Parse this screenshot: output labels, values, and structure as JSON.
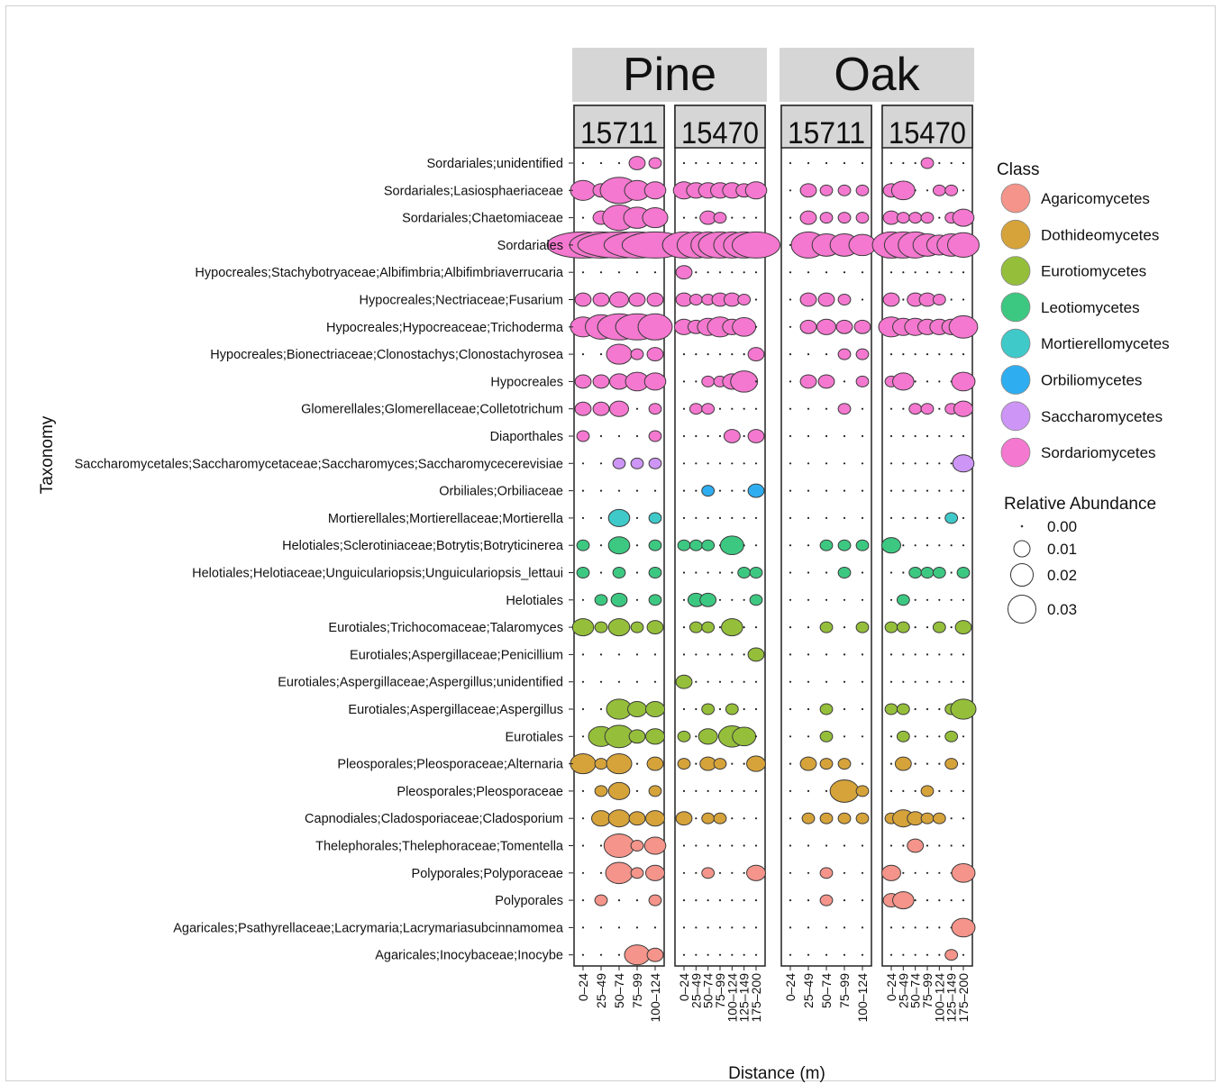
{
  "chart_data": {
    "type": "scatter",
    "xlabel": "Distance (m)",
    "ylabel": "Taxonomy",
    "facets": [
      {
        "site": "Pine",
        "plots": [
          {
            "id": "15711",
            "distance_bins": [
              "0–24",
              "25–49",
              "50–74",
              "75–99",
              "100–124"
            ]
          },
          {
            "id": "15470",
            "distance_bins": [
              "0–24",
              "25–49",
              "50–74",
              "75–99",
              "100–124",
              "125–149",
              "175–200"
            ]
          }
        ]
      },
      {
        "site": "Oak",
        "plots": [
          {
            "id": "15711",
            "distance_bins": [
              "0–24",
              "25–49",
              "50–74",
              "75–99",
              "100–124"
            ]
          },
          {
            "id": "15470",
            "distance_bins": [
              "0–24",
              "25–49",
              "50–74",
              "75–99",
              "100–124",
              "125–149",
              "175–200"
            ]
          }
        ]
      }
    ],
    "taxa": [
      "Sordariales;unidentified",
      "Sordariales;Lasiosphaeriaceae",
      "Sordariales;Chaetomiaceae",
      "Sordariales",
      "Hypocreales;Stachybotryaceae;Albifimbria;Albifimbriaverrucaria",
      "Hypocreales;Nectriaceae;Fusarium",
      "Hypocreales;Hypocreaceae;Trichoderma",
      "Hypocreales;Bionectriaceae;Clonostachys;Clonostachyrosea",
      "Hypocreales",
      "Glomerellales;Glomerellaceae;Colletotrichum",
      "Diaporthales",
      "Saccharomycetales;Saccharomycetaceae;Saccharomyces;Saccharomycecerevisiae",
      "Orbiliales;Orbiliaceae",
      "Mortierellales;Mortierellaceae;Mortierella",
      "Helotiales;Sclerotiniaceae;Botrytis;Botryticinerea",
      "Helotiales;Helotiaceae;Unguiculariopsis;Unguiculariopsis_lettaui",
      "Helotiales",
      "Eurotiales;Trichocomaceae;Talaromyces",
      "Eurotiales;Aspergillaceae;Penicillium",
      "Eurotiales;Aspergillaceae;Aspergillus;unidentified",
      "Eurotiales;Aspergillaceae;Aspergillus",
      "Eurotiales",
      "Pleosporales;Pleosporaceae;Alternaria",
      "Pleosporales;Pleosporaceae",
      "Capnodiales;Cladosporiaceae;Cladosporium",
      "Thelephorales;Thelephoraceae;Tomentella",
      "Polyporales;Polyporaceae",
      "Polyporales",
      "Agaricales;Psathyrellaceae;Lacrymaria;Lacrymariasubcinnamomea",
      "Agaricales;Inocybaceae;Inocybe"
    ],
    "taxon_class": [
      "Sordariomycetes",
      "Sordariomycetes",
      "Sordariomycetes",
      "Sordariomycetes",
      "Sordariomycetes",
      "Sordariomycetes",
      "Sordariomycetes",
      "Sordariomycetes",
      "Sordariomycetes",
      "Sordariomycetes",
      "Sordariomycetes",
      "Saccharomycetes",
      "Orbiliomycetes",
      "Mortierellomycetes",
      "Leotiomycetes",
      "Leotiomycetes",
      "Leotiomycetes",
      "Eurotiomycetes",
      "Eurotiomycetes",
      "Eurotiomycetes",
      "Eurotiomycetes",
      "Eurotiomycetes",
      "Dothideomycetes",
      "Dothideomycetes",
      "Dothideomycetes",
      "Agaricomycetes",
      "Agaricomycetes",
      "Agaricomycetes",
      "Agaricomycetes",
      "Agaricomycetes"
    ],
    "abundance_note_values_are_relative_abundance": true,
    "values": [
      [
        [
          [
            0,
            0,
            0,
            0.002,
            0.001
          ],
          [
            0.006,
            0.002,
            0.015,
            0.006,
            0.004
          ],
          [
            0,
            0.002,
            0.011,
            0.007,
            0.006
          ],
          [
            0.06,
            0.045,
            0.08,
            0.05,
            0.05
          ],
          [
            0,
            0,
            0,
            0,
            0
          ],
          [
            0.002,
            0.002,
            0.003,
            0.002,
            0.002
          ],
          [
            0.006,
            0.01,
            0.02,
            0.02,
            0.012
          ],
          [
            0,
            0,
            0.006,
            0.001,
            0.002
          ],
          [
            0.002,
            0.002,
            0.003,
            0.005,
            0.004
          ],
          [
            0.002,
            0.002,
            0.003,
            0,
            0.001
          ],
          [
            0.001,
            0,
            0,
            0,
            0.001
          ],
          [
            0,
            0,
            0.001,
            0.001,
            0.001
          ],
          [
            0,
            0,
            0,
            0,
            0
          ],
          [
            0,
            0,
            0.004,
            0,
            0.001
          ],
          [
            0.001,
            0,
            0.004,
            0,
            0.001
          ],
          [
            0.001,
            0,
            0.001,
            0,
            0.001
          ],
          [
            0,
            0.001,
            0.002,
            0,
            0.001
          ],
          [
            0.004,
            0.001,
            0.004,
            0.001,
            0.002
          ],
          [
            0,
            0,
            0,
            0,
            0
          ],
          [
            0,
            0,
            0,
            0,
            0
          ],
          [
            0,
            0,
            0.006,
            0.003,
            0.003
          ],
          [
            0,
            0.006,
            0.008,
            0.002,
            0.003
          ],
          [
            0.006,
            0.001,
            0.006,
            0,
            0.002
          ],
          [
            0,
            0.001,
            0.004,
            0,
            0.001
          ],
          [
            0,
            0.003,
            0.004,
            0.002,
            0.003
          ],
          [
            0,
            0,
            0.009,
            0.001,
            0.004
          ],
          [
            0,
            0,
            0.007,
            0.001,
            0.003
          ],
          [
            0,
            0.001,
            0,
            0,
            0.001
          ],
          [
            0,
            0,
            0,
            0,
            0
          ],
          [
            0,
            0,
            0,
            0.006,
            0.002
          ]
        ],
        [
          [
            0,
            0,
            0,
            0,
            0,
            0,
            0
          ],
          [
            0.004,
            0.003,
            0.003,
            0.003,
            0.003,
            0.002,
            0.004
          ],
          [
            0,
            0,
            0.002,
            0.001,
            0,
            0,
            0
          ],
          [
            0.02,
            0.015,
            0.012,
            0.02,
            0.014,
            0.018,
            0.025
          ],
          [
            0.002,
            0,
            0,
            0,
            0,
            0,
            0
          ],
          [
            0.002,
            0.001,
            0.001,
            0.002,
            0.002,
            0.001,
            0
          ],
          [
            0.003,
            0.002,
            0.004,
            0.006,
            0.003,
            0.005,
            0
          ],
          [
            0,
            0,
            0,
            0,
            0,
            0,
            0.002
          ],
          [
            0,
            0,
            0.001,
            0.001,
            0.003,
            0.007,
            0
          ],
          [
            0,
            0.001,
            0.001,
            0,
            0,
            0,
            0
          ],
          [
            0,
            0,
            0,
            0,
            0.002,
            0,
            0.002
          ],
          [
            0,
            0,
            0,
            0,
            0,
            0,
            0
          ],
          [
            0,
            0,
            0.001,
            0,
            0,
            0,
            0.002
          ],
          [
            0,
            0,
            0,
            0,
            0,
            0,
            0
          ],
          [
            0.001,
            0.001,
            0.001,
            0,
            0.005,
            0,
            0
          ],
          [
            0,
            0,
            0,
            0,
            0,
            0.001,
            0.001
          ],
          [
            0,
            0.002,
            0.002,
            0,
            0,
            0,
            0.001
          ],
          [
            0,
            0.001,
            0.001,
            0,
            0.004,
            0,
            0
          ],
          [
            0,
            0,
            0,
            0,
            0,
            0,
            0.002
          ],
          [
            0.002,
            0,
            0,
            0,
            0,
            0,
            0
          ],
          [
            0,
            0,
            0.001,
            0,
            0.001,
            0,
            0
          ],
          [
            0.001,
            0,
            0.003,
            0,
            0.007,
            0.005,
            0
          ],
          [
            0.001,
            0,
            0.002,
            0.001,
            0,
            0,
            0.003
          ],
          [
            0,
            0,
            0,
            0,
            0,
            0,
            0
          ],
          [
            0.002,
            0,
            0.001,
            0.001,
            0,
            0,
            0
          ],
          [
            0,
            0,
            0,
            0,
            0,
            0,
            0
          ],
          [
            0,
            0,
            0.001,
            0,
            0,
            0,
            0.003
          ],
          [
            0,
            0,
            0,
            0,
            0,
            0,
            0
          ],
          [
            0,
            0,
            0,
            0,
            0,
            0,
            0
          ],
          [
            0,
            0,
            0,
            0,
            0,
            0,
            0
          ]
        ]
      ],
      [
        [
          [
            0,
            0,
            0,
            0,
            0
          ],
          [
            0,
            0.002,
            0.001,
            0.001,
            0.001
          ],
          [
            0,
            0.002,
            0.001,
            0.001,
            0.001
          ],
          [
            0,
            0.012,
            0.008,
            0.008,
            0.007
          ],
          [
            0,
            0,
            0,
            0,
            0
          ],
          [
            0,
            0.002,
            0.002,
            0.001,
            0
          ],
          [
            0,
            0.002,
            0.003,
            0.002,
            0.002
          ],
          [
            0,
            0,
            0,
            0.001,
            0.001
          ],
          [
            0,
            0.002,
            0.002,
            0,
            0.001
          ],
          [
            0,
            0,
            0,
            0.001,
            0
          ],
          [
            0,
            0,
            0,
            0,
            0
          ],
          [
            0,
            0,
            0,
            0,
            0
          ],
          [
            0,
            0,
            0,
            0,
            0
          ],
          [
            0,
            0,
            0,
            0,
            0
          ],
          [
            0,
            0,
            0.001,
            0.001,
            0.001
          ],
          [
            0,
            0,
            0,
            0.001,
            0
          ],
          [
            0,
            0,
            0,
            0,
            0
          ],
          [
            0,
            0,
            0.001,
            0,
            0.001
          ],
          [
            0,
            0,
            0,
            0,
            0
          ],
          [
            0,
            0,
            0,
            0,
            0
          ],
          [
            0,
            0,
            0.001,
            0,
            0
          ],
          [
            0,
            0,
            0.001,
            0,
            0
          ],
          [
            0,
            0.002,
            0.001,
            0.001,
            0
          ],
          [
            0,
            0,
            0,
            0.008,
            0.001
          ],
          [
            0,
            0.001,
            0.001,
            0.001,
            0.001
          ],
          [
            0,
            0,
            0,
            0,
            0
          ],
          [
            0,
            0,
            0.001,
            0,
            0
          ],
          [
            0,
            0,
            0.001,
            0,
            0
          ],
          [
            0,
            0,
            0,
            0,
            0
          ],
          [
            0,
            0,
            0,
            0,
            0
          ]
        ],
        [
          [
            0,
            0,
            0,
            0.001,
            0,
            0,
            0
          ],
          [
            0.002,
            0.005,
            0,
            0,
            0.001,
            0.001,
            0
          ],
          [
            0.002,
            0.001,
            0.001,
            0.001,
            0,
            0.001,
            0.004
          ],
          [
            0.015,
            0.015,
            0.012,
            0.008,
            0.006,
            0.008,
            0.01
          ],
          [
            0,
            0,
            0,
            0,
            0,
            0,
            0
          ],
          [
            0.002,
            0,
            0.002,
            0.002,
            0.001,
            0,
            0
          ],
          [
            0.006,
            0.004,
            0.004,
            0.003,
            0.003,
            0.003,
            0.008
          ],
          [
            0,
            0,
            0,
            0,
            0,
            0,
            0
          ],
          [
            0.001,
            0.004,
            0,
            0,
            0,
            0,
            0.005
          ],
          [
            0,
            0,
            0.001,
            0.001,
            0,
            0.001,
            0.003
          ],
          [
            0,
            0,
            0,
            0,
            0,
            0,
            0
          ],
          [
            0,
            0,
            0,
            0,
            0,
            0,
            0.004
          ],
          [
            0,
            0,
            0,
            0,
            0,
            0,
            0
          ],
          [
            0,
            0,
            0,
            0,
            0,
            0.001,
            0
          ],
          [
            0.003,
            0,
            0,
            0,
            0,
            0,
            0
          ],
          [
            0,
            0,
            0.001,
            0.001,
            0.001,
            0,
            0.001
          ],
          [
            0,
            0.001,
            0,
            0,
            0,
            0,
            0
          ],
          [
            0.001,
            0.001,
            0,
            0,
            0.001,
            0,
            0.002
          ],
          [
            0,
            0,
            0,
            0,
            0,
            0,
            0
          ],
          [
            0,
            0,
            0,
            0,
            0,
            0,
            0
          ],
          [
            0.001,
            0.001,
            0,
            0,
            0,
            0.001,
            0.006
          ],
          [
            0,
            0.001,
            0,
            0,
            0,
            0.001,
            0
          ],
          [
            0,
            0.002,
            0,
            0,
            0,
            0.001,
            0
          ],
          [
            0,
            0,
            0,
            0.001,
            0,
            0,
            0
          ],
          [
            0.001,
            0.004,
            0.002,
            0.001,
            0.001,
            0,
            0
          ],
          [
            0,
            0,
            0.002,
            0,
            0,
            0,
            0
          ],
          [
            0.003,
            0,
            0,
            0,
            0,
            0,
            0.005
          ],
          [
            0.002,
            0.004,
            0,
            0,
            0,
            0,
            0
          ],
          [
            0,
            0,
            0,
            0,
            0,
            0,
            0.005
          ],
          [
            0,
            0,
            0,
            0,
            0,
            0.001,
            0
          ]
        ]
      ]
    ],
    "legend": {
      "class_title": "Class",
      "classes": [
        {
          "name": "Agaricomycetes",
          "color": "#f4948a"
        },
        {
          "name": "Dothideomycetes",
          "color": "#d6a33a"
        },
        {
          "name": "Eurotiomycetes",
          "color": "#95bf3a"
        },
        {
          "name": "Leotiomycetes",
          "color": "#3dc882"
        },
        {
          "name": "Mortierellomycetes",
          "color": "#3fc9c9"
        },
        {
          "name": "Orbiliomycetes",
          "color": "#2eaef0"
        },
        {
          "name": "Saccharomycetes",
          "color": "#cd95f5"
        },
        {
          "name": "Sordariomycetes",
          "color": "#f478cf"
        }
      ],
      "size_title": "Relative Abundance",
      "sizes": [
        {
          "label": "0.00",
          "value": 0.0
        },
        {
          "label": "0.01",
          "value": 0.01
        },
        {
          "label": "0.02",
          "value": 0.02
        },
        {
          "label": "0.03",
          "value": 0.03
        }
      ]
    }
  }
}
